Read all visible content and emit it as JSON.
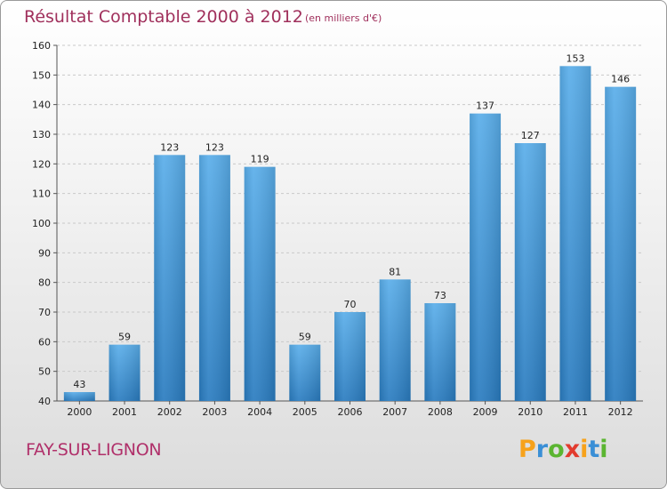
{
  "chart_data": {
    "type": "bar",
    "title": "Résultat Comptable 2000 à 2012",
    "subtitle": "(en milliers d'€)",
    "categories": [
      "2000",
      "2001",
      "2002",
      "2003",
      "2004",
      "2005",
      "2006",
      "2007",
      "2008",
      "2009",
      "2010",
      "2011",
      "2012"
    ],
    "values": [
      43,
      59,
      123,
      123,
      119,
      59,
      70,
      81,
      73,
      137,
      127,
      153,
      146
    ],
    "ylim": [
      40,
      160
    ],
    "yticks": [
      40,
      50,
      60,
      70,
      80,
      90,
      100,
      110,
      120,
      130,
      140,
      150,
      160
    ],
    "grid": true,
    "bar_color_top": "#5aaeea",
    "bar_color_bottom": "#2a7cc0"
  },
  "footer": {
    "location": "FAY-SUR-LIGNON",
    "logo_letters": [
      "P",
      "r",
      "o",
      "x",
      "i",
      "t",
      "i"
    ],
    "logo_colors": [
      "#f7a21b",
      "#3a8fd6",
      "#5bb531",
      "#e23b2e",
      "#f7a21b",
      "#3a8fd6",
      "#5bb531"
    ]
  }
}
